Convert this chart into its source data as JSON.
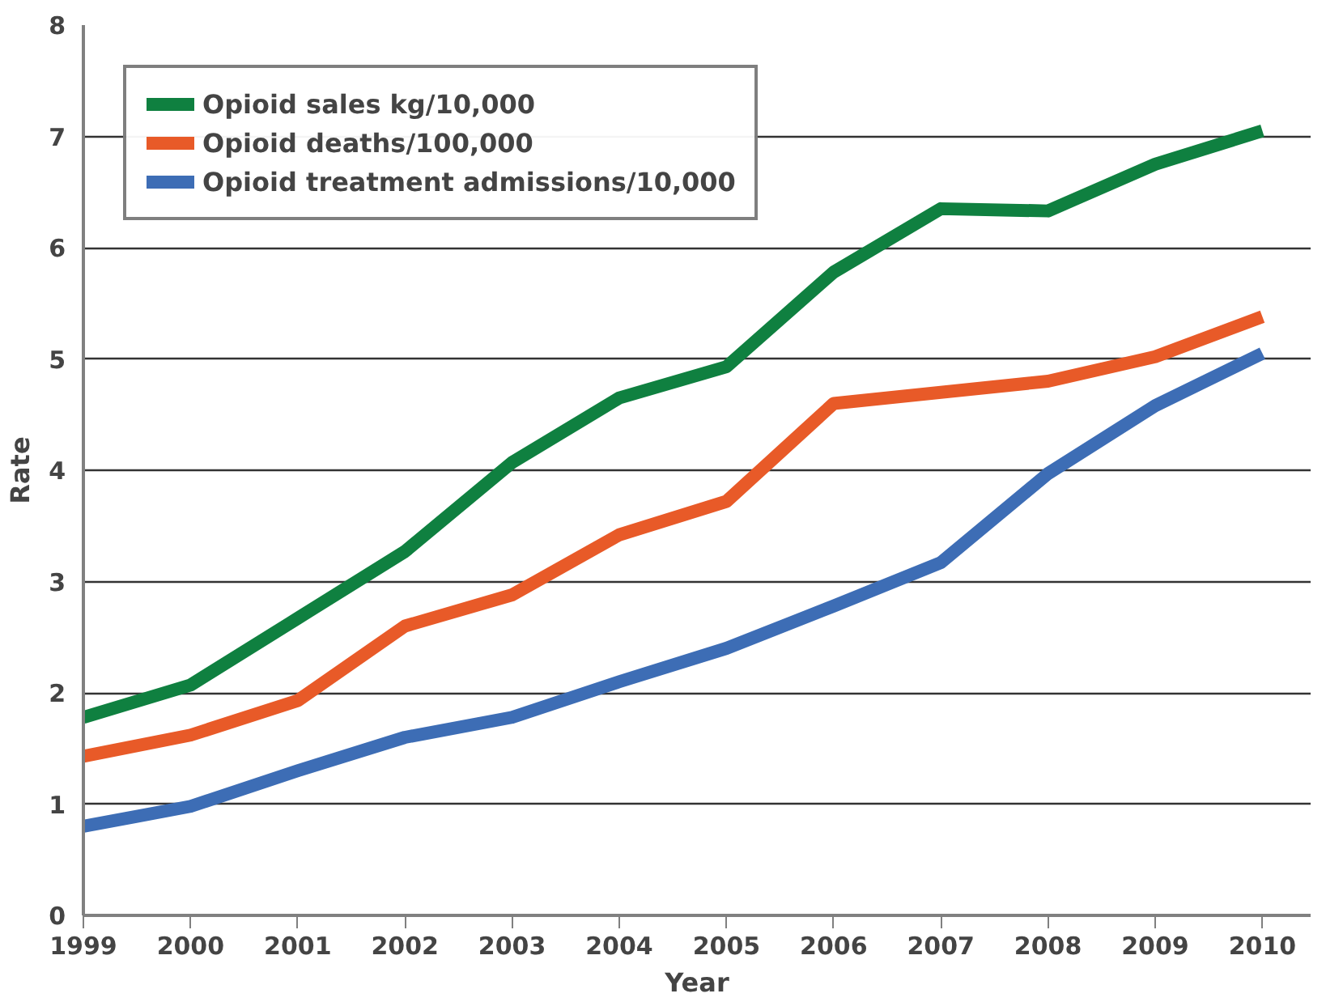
{
  "chart_data": {
    "type": "line",
    "xlabel": "Year",
    "ylabel": "Rate",
    "categories": [
      "1999",
      "2000",
      "2001",
      "2002",
      "2003",
      "2004",
      "2005",
      "2006",
      "2007",
      "2008",
      "2009",
      "2010"
    ],
    "ylim": [
      0,
      8
    ],
    "yticks": [
      0,
      1,
      2,
      3,
      4,
      5,
      6,
      7,
      8
    ],
    "grid": "y",
    "legend": "top left",
    "line_style": "solid",
    "series": [
      {
        "name": "Opioid sales kg/10,000",
        "color": "#0f8040",
        "values": [
          1.78,
          2.07,
          2.67,
          3.27,
          4.07,
          4.65,
          4.93,
          5.78,
          6.35,
          6.33,
          6.75,
          7.05
        ]
      },
      {
        "name": "Opioid deaths/100,000",
        "color": "#e85a28",
        "values": [
          1.43,
          1.62,
          1.93,
          2.6,
          2.88,
          3.42,
          3.72,
          4.6,
          4.7,
          4.8,
          5.02,
          5.38
        ]
      },
      {
        "name": "Opioid treatment admissions/10,000",
        "color": "#3d6db5",
        "values": [
          0.8,
          0.98,
          1.3,
          1.6,
          1.78,
          2.1,
          2.4,
          2.78,
          3.17,
          3.97,
          4.58,
          5.05
        ]
      }
    ]
  }
}
